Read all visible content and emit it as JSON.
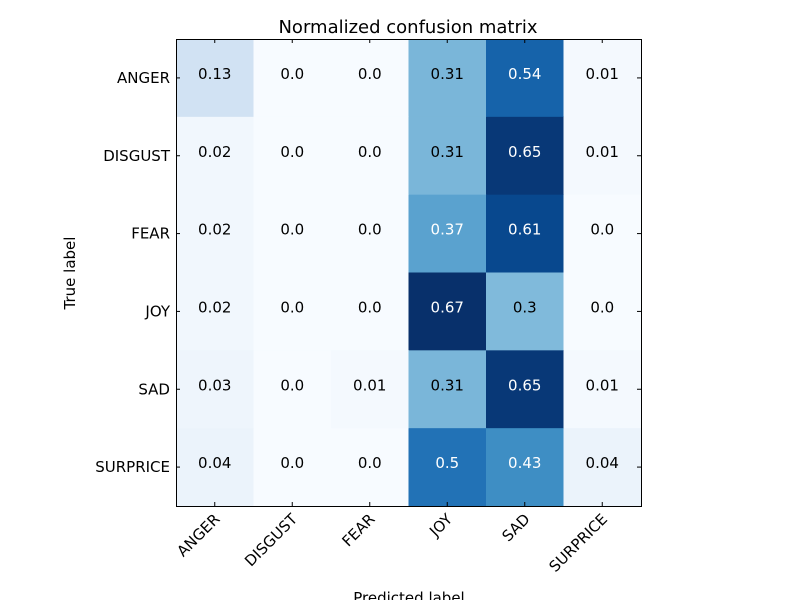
{
  "chart_data": {
    "type": "heatmap",
    "title": "Normalized confusion matrix",
    "xlabel": "Predicted label",
    "ylabel": "True label",
    "x_categories": [
      "ANGER",
      "DISGUST",
      "FEAR",
      "JOY",
      "SAD",
      "SURPRICE"
    ],
    "y_categories": [
      "ANGER",
      "DISGUST",
      "FEAR",
      "JOY",
      "SAD",
      "SURPRICE"
    ],
    "values": [
      [
        0.13,
        0.0,
        0.0,
        0.31,
        0.54,
        0.01
      ],
      [
        0.02,
        0.0,
        0.0,
        0.31,
        0.65,
        0.01
      ],
      [
        0.02,
        0.0,
        0.0,
        0.37,
        0.61,
        0.0
      ],
      [
        0.02,
        0.0,
        0.0,
        0.67,
        0.3,
        0.0
      ],
      [
        0.03,
        0.0,
        0.01,
        0.31,
        0.65,
        0.01
      ],
      [
        0.04,
        0.0,
        0.0,
        0.5,
        0.43,
        0.04
      ]
    ],
    "cell_labels": [
      [
        "0.13",
        "0.0",
        "0.0",
        "0.31",
        "0.54",
        "0.01"
      ],
      [
        "0.02",
        "0.0",
        "0.0",
        "0.31",
        "0.65",
        "0.01"
      ],
      [
        "0.02",
        "0.0",
        "0.0",
        "0.37",
        "0.61",
        "0.0"
      ],
      [
        "0.02",
        "0.0",
        "0.0",
        "0.67",
        "0.3",
        "0.0"
      ],
      [
        "0.03",
        "0.0",
        "0.01",
        "0.31",
        "0.65",
        "0.01"
      ],
      [
        "0.04",
        "0.0",
        "0.0",
        "0.5",
        "0.43",
        "0.04"
      ]
    ],
    "colormap": "Blues",
    "vmin": 0.0,
    "vmax": 0.67,
    "label_color_light": "#ffffff",
    "label_color_dark": "#000000"
  }
}
